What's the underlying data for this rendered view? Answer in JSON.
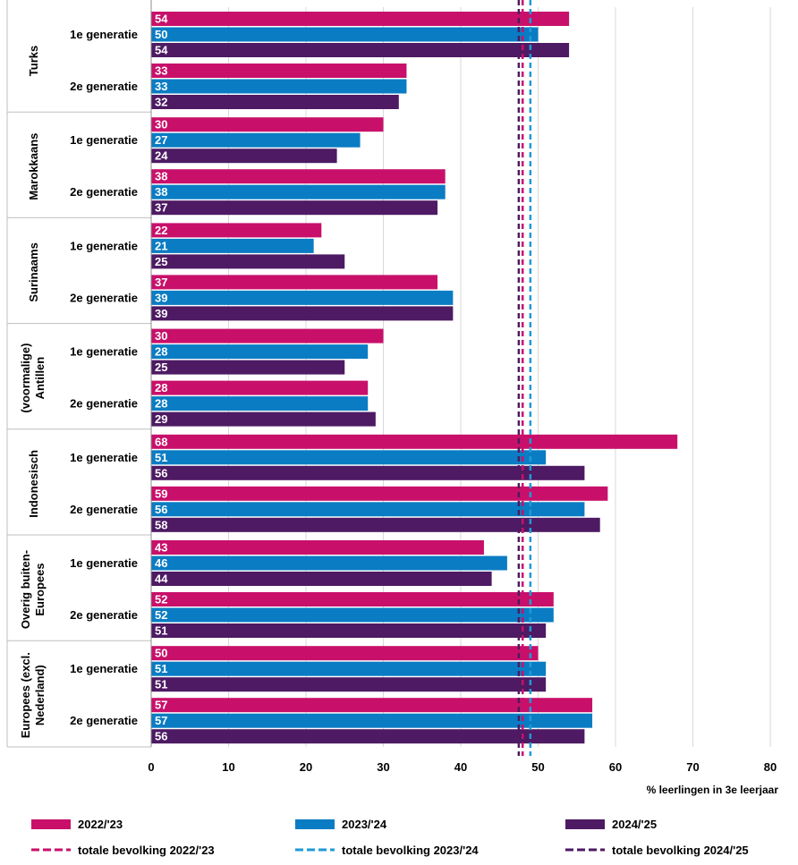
{
  "chart_data": {
    "type": "bar",
    "orientation": "horizontal",
    "xlabel": "% leerlingen in 3e leerjaar",
    "xlim": [
      0,
      80
    ],
    "xticks": [
      0,
      10,
      20,
      30,
      40,
      50,
      60,
      70,
      80
    ],
    "grid": "vertical",
    "legend_position": "bottom",
    "series": [
      {
        "name": "2022/'23",
        "color": "#c8106a"
      },
      {
        "name": "2023/'24",
        "color": "#0a7cc3"
      },
      {
        "name": "2024/'25",
        "color": "#4d1a63"
      }
    ],
    "reference_lines": [
      {
        "name": "totale bevolking 2022/'23",
        "value": 48.0,
        "color": "#c8106a",
        "style": "dashed"
      },
      {
        "name": "totale bevolking 2023/'24",
        "value": 49.0,
        "color": "#1e9ad6",
        "style": "dashed"
      },
      {
        "name": "totale bevolking 2024/'25",
        "value": 47.5,
        "color": "#4d1a63",
        "style": "dashed"
      }
    ],
    "groups": [
      {
        "name": "Turks",
        "rows": [
          {
            "label": "1e generatie",
            "values": [
              54,
              50,
              54
            ]
          },
          {
            "label": "2e generatie",
            "values": [
              33,
              33,
              32
            ]
          }
        ]
      },
      {
        "name": "Marokkaans",
        "rows": [
          {
            "label": "1e generatie",
            "values": [
              30,
              27,
              24
            ]
          },
          {
            "label": "2e generatie",
            "values": [
              38,
              38,
              37
            ]
          }
        ]
      },
      {
        "name": "Surinaams",
        "rows": [
          {
            "label": "1e generatie",
            "values": [
              22,
              21,
              25
            ]
          },
          {
            "label": "2e generatie",
            "values": [
              37,
              39,
              39
            ]
          }
        ]
      },
      {
        "name": "(voormalige) Antillen",
        "name_lines": [
          "(voormalige)",
          "Antillen"
        ],
        "rows": [
          {
            "label": "1e generatie",
            "values": [
              30,
              28,
              25
            ]
          },
          {
            "label": "2e generatie",
            "values": [
              28,
              28,
              29
            ]
          }
        ]
      },
      {
        "name": "Indonesisch",
        "rows": [
          {
            "label": "1e generatie",
            "values": [
              68,
              51,
              56
            ]
          },
          {
            "label": "2e generatie",
            "values": [
              59,
              56,
              58
            ]
          }
        ]
      },
      {
        "name": "Overig buiten-Europees",
        "name_lines": [
          "Overig buiten-",
          "Europees"
        ],
        "rows": [
          {
            "label": "1e generatie",
            "values": [
              43,
              46,
              44
            ]
          },
          {
            "label": "2e generatie",
            "values": [
              52,
              52,
              51
            ]
          }
        ]
      },
      {
        "name": "Europees (excl. Nederland)",
        "name_lines": [
          "Europees (excl.",
          "Nederland)"
        ],
        "rows": [
          {
            "label": "1e generatie",
            "values": [
              50,
              51,
              51
            ]
          },
          {
            "label": "2e generatie",
            "values": [
              57,
              57,
              56
            ]
          }
        ]
      }
    ]
  }
}
